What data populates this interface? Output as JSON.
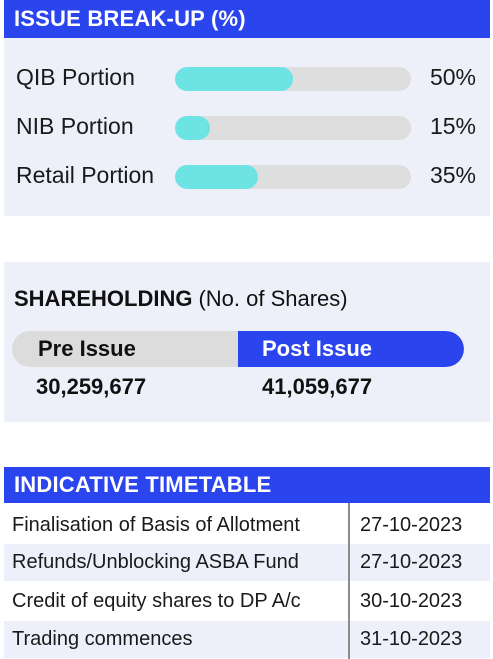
{
  "breakup": {
    "title": "ISSUE BREAK-UP (%)",
    "items": [
      {
        "label": "QIB Portion",
        "value": "50%",
        "fraction": 0.5
      },
      {
        "label": "NIB Portion",
        "value": "15%",
        "fraction": 0.15
      },
      {
        "label": "Retail Portion",
        "value": "35%",
        "fraction": 0.35
      }
    ],
    "colors": {
      "track": "#dedede",
      "fill": "#6ee3e4"
    }
  },
  "shareholding": {
    "title": "SHAREHOLDING",
    "subtitle": "(No. of Shares)",
    "pre_label": "Pre Issue",
    "post_label": "Post Issue",
    "pre_value": "30,259,677",
    "post_value": "41,059,677"
  },
  "timetable": {
    "title": "INDICATIVE TIMETABLE",
    "rows": [
      {
        "event": "Finalisation of Basis of Allotment",
        "date": "27-10-2023"
      },
      {
        "event": "Refunds/Unblocking ASBA Fund",
        "date": "27-10-2023"
      },
      {
        "event": "Credit of equity shares to DP A/c",
        "date": "30-10-2023"
      },
      {
        "event": "Trading commences",
        "date": "31-10-2023"
      }
    ]
  },
  "theme": {
    "accent": "#2b45ee",
    "panel_bg": "#eef0f9"
  }
}
